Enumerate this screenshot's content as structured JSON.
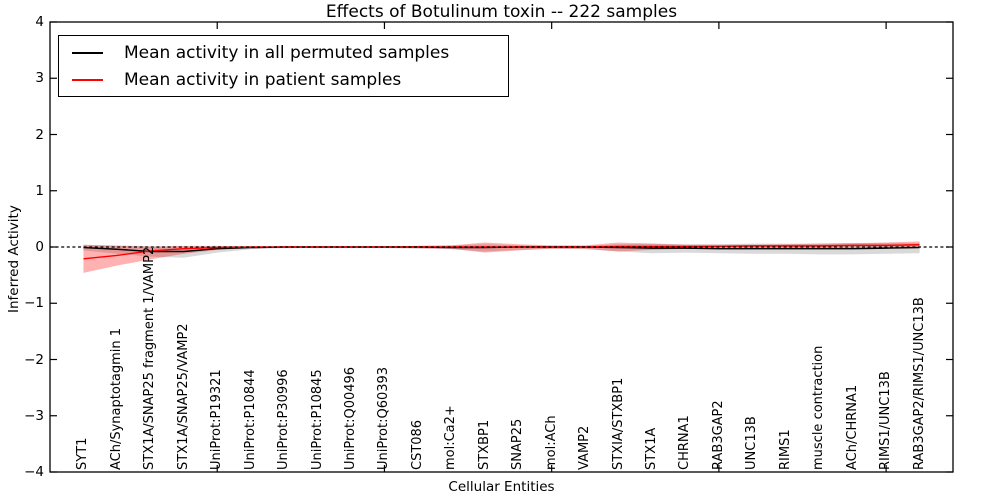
{
  "chart_data": {
    "type": "line",
    "title": "Effects of Botulinum toxin -- 222 samples",
    "xlabel": "Cellular Entities",
    "ylabel": "Inferred Activity",
    "ylim": [
      -4,
      4
    ],
    "yticks": [
      -4,
      -3,
      -2,
      -1,
      0,
      1,
      2,
      3,
      4
    ],
    "xlim": [
      0,
      27
    ],
    "xtick_positions": [
      5,
      10,
      15,
      20,
      25
    ],
    "grid": false,
    "legend_position": "upper left",
    "zero_line": {
      "style": "dashed",
      "color": "#000000",
      "y": 0
    },
    "categories": [
      "SYT1",
      "ACh/Synaptotagmin 1",
      "STX1A/SNAP25 fragment 1/VAMP2",
      "STX1A/SNAP25/VAMP2",
      "UniProt:P19321",
      "UniProt:P10844",
      "UniProt:P30996",
      "UniProt:P10845",
      "UniProt:Q00496",
      "UniProt:Q60393",
      "CST086",
      "mol:Ca2+",
      "STXBP1",
      "SNAP25",
      "mol:ACh",
      "VAMP2",
      "STXIA/STXBP1",
      "STX1A",
      "CHRNA1",
      "RAB3GAP2",
      "UNC13B",
      "RIMS1",
      "muscle contraction",
      "ACh/CHRNA1",
      "RIMS1/UNC13B",
      "RAB3GAP2/RIMS1/UNC13B"
    ],
    "x": [
      1,
      2,
      3,
      4,
      5,
      6,
      7,
      8,
      9,
      10,
      11,
      12,
      13,
      14,
      15,
      16,
      17,
      18,
      19,
      20,
      21,
      22,
      23,
      24,
      25,
      26
    ],
    "series": [
      {
        "name": "Mean activity in all permuted samples",
        "color": "#000000",
        "band_color": "rgba(0,0,0,0.15)",
        "values": [
          -0.01,
          -0.04,
          -0.08,
          -0.08,
          -0.03,
          -0.01,
          0,
          0,
          0,
          0,
          0,
          -0.01,
          -0.01,
          0,
          0,
          0,
          -0.01,
          -0.02,
          -0.02,
          -0.03,
          -0.03,
          -0.03,
          -0.03,
          -0.03,
          -0.02,
          -0.01
        ],
        "band_lo": [
          -0.06,
          -0.12,
          -0.17,
          -0.19,
          -0.1,
          -0.04,
          -0.02,
          -0.02,
          -0.02,
          -0.02,
          -0.03,
          -0.04,
          -0.08,
          -0.05,
          -0.03,
          -0.04,
          -0.08,
          -0.11,
          -0.1,
          -0.11,
          -0.12,
          -0.12,
          -0.13,
          -0.13,
          -0.12,
          -0.11
        ],
        "band_hi": [
          0.04,
          0.03,
          0.01,
          0.01,
          0.02,
          0.01,
          0.01,
          0.01,
          0.01,
          0.01,
          0.02,
          0.03,
          0.05,
          0.03,
          0.02,
          0.02,
          0.05,
          0.06,
          0.05,
          0.05,
          0.06,
          0.06,
          0.06,
          0.07,
          0.07,
          0.07
        ]
      },
      {
        "name": "Mean activity in patient samples",
        "color": "#ff0000",
        "band_color": "rgba(255,0,0,0.3)",
        "values": [
          -0.21,
          -0.15,
          -0.07,
          -0.03,
          -0.01,
          0,
          0,
          0,
          0,
          0,
          0,
          0,
          0,
          0,
          0,
          0,
          0.01,
          0.01,
          0.01,
          0.01,
          0.02,
          0.02,
          0.02,
          0.03,
          0.03,
          0.04
        ],
        "band_lo": [
          -0.46,
          -0.33,
          -0.22,
          -0.12,
          -0.05,
          -0.02,
          -0.01,
          -0.01,
          -0.01,
          -0.01,
          -0.02,
          -0.03,
          -0.1,
          -0.06,
          -0.03,
          -0.03,
          -0.08,
          -0.05,
          -0.03,
          -0.02,
          -0.02,
          -0.02,
          -0.02,
          -0.01,
          -0.01,
          0.0
        ],
        "band_hi": [
          0.04,
          0.02,
          0.01,
          0.02,
          0.02,
          0.01,
          0.01,
          0.01,
          0.01,
          0.01,
          0.02,
          0.03,
          0.08,
          0.05,
          0.03,
          0.03,
          0.08,
          0.06,
          0.04,
          0.04,
          0.04,
          0.05,
          0.06,
          0.07,
          0.08,
          0.1
        ]
      }
    ]
  }
}
